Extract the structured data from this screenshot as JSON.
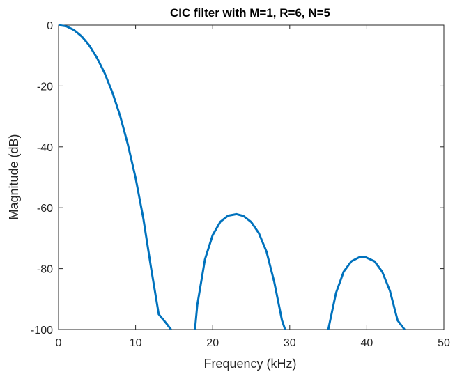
{
  "chart_data": {
    "type": "line",
    "title": "CIC filter with M=1, R=6, N=5",
    "xlabel": "Frequency (kHz)",
    "ylabel": "Magnitude (dB)",
    "xlim": [
      0,
      50
    ],
    "ylim": [
      -100,
      0
    ],
    "xticks": [
      0,
      10,
      20,
      30,
      40,
      50
    ],
    "yticks": [
      0,
      -20,
      -40,
      -60,
      -80,
      -100
    ],
    "grid": false,
    "line_color": "#0072BD",
    "series": [
      {
        "name": "",
        "x": [
          0,
          1,
          2,
          3,
          4,
          5,
          6,
          7,
          8,
          9,
          10,
          11,
          12,
          13,
          14,
          14.6,
          17.7,
          18,
          19,
          20,
          21,
          22,
          23.1,
          24,
          25,
          26,
          27,
          28,
          29,
          29.4,
          35,
          36,
          37,
          38,
          39,
          39.8,
          41,
          42,
          43,
          44,
          44.9
        ],
        "y": [
          0,
          -0.4,
          -1.6,
          -3.7,
          -6.7,
          -10.8,
          -15.9,
          -22.2,
          -29.9,
          -39.2,
          -50.2,
          -63.5,
          -79.6,
          -95,
          -98,
          -100,
          -100,
          -92,
          -77,
          -69,
          -64.6,
          -62.6,
          -62.1,
          -62.7,
          -64.7,
          -68.4,
          -74.5,
          -84.5,
          -97,
          -100,
          -100,
          -88,
          -81,
          -77.6,
          -76.3,
          -76.2,
          -77.6,
          -81,
          -87.3,
          -97,
          -100
        ]
      }
    ]
  }
}
